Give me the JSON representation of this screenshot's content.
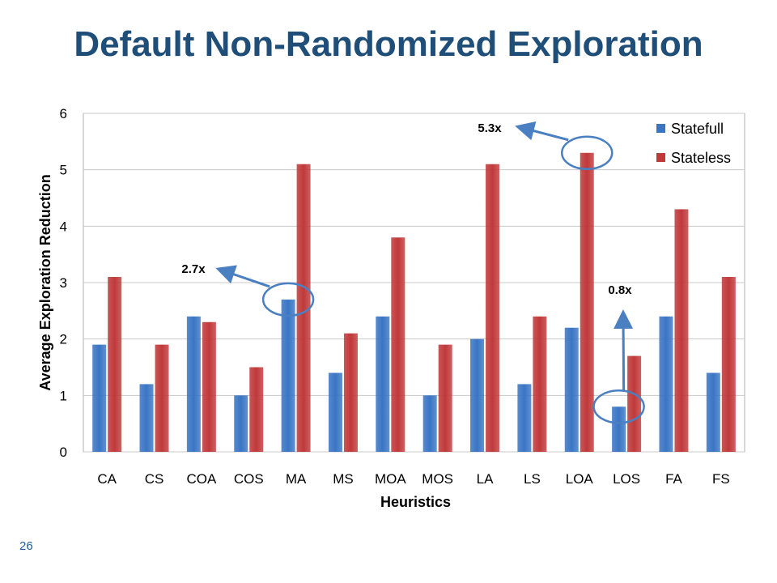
{
  "slide": {
    "title": "Default Non-Randomized Exploration",
    "page_number": "26"
  },
  "colors": {
    "title": "#1f4e79",
    "statefull": "#3a75c4",
    "stateless": "#c0393a",
    "annotation": "#4a7fc1",
    "grid": "#c8c8c8"
  },
  "chart_data": {
    "type": "bar",
    "title": "",
    "xlabel": "Heuristics",
    "ylabel": "Average Exploration Reduction",
    "ylim": [
      0,
      6
    ],
    "yticks": [
      0,
      1,
      2,
      3,
      4,
      5,
      6
    ],
    "grid": true,
    "legend_position": "top-right",
    "categories": [
      "CA",
      "CS",
      "COA",
      "COS",
      "MA",
      "MS",
      "MOA",
      "MOS",
      "LA",
      "LS",
      "LOA",
      "LOS",
      "FA",
      "FS"
    ],
    "series": [
      {
        "name": "Statefull",
        "values": [
          1.9,
          1.2,
          2.4,
          1.0,
          2.7,
          1.4,
          2.4,
          1.0,
          2.0,
          1.2,
          2.2,
          0.8,
          2.4,
          1.4
        ]
      },
      {
        "name": "Stateless",
        "values": [
          3.1,
          1.9,
          2.3,
          1.5,
          5.1,
          2.1,
          3.8,
          1.9,
          5.1,
          2.4,
          5.3,
          1.7,
          4.3,
          3.1
        ]
      }
    ],
    "annotations": [
      {
        "text": "2.7x",
        "category": "MA",
        "series": "Statefull"
      },
      {
        "text": "5.3x",
        "category": "LOA",
        "series": "Stateless"
      },
      {
        "text": "0.8x",
        "category": "LOS",
        "series": "Statefull"
      }
    ]
  }
}
